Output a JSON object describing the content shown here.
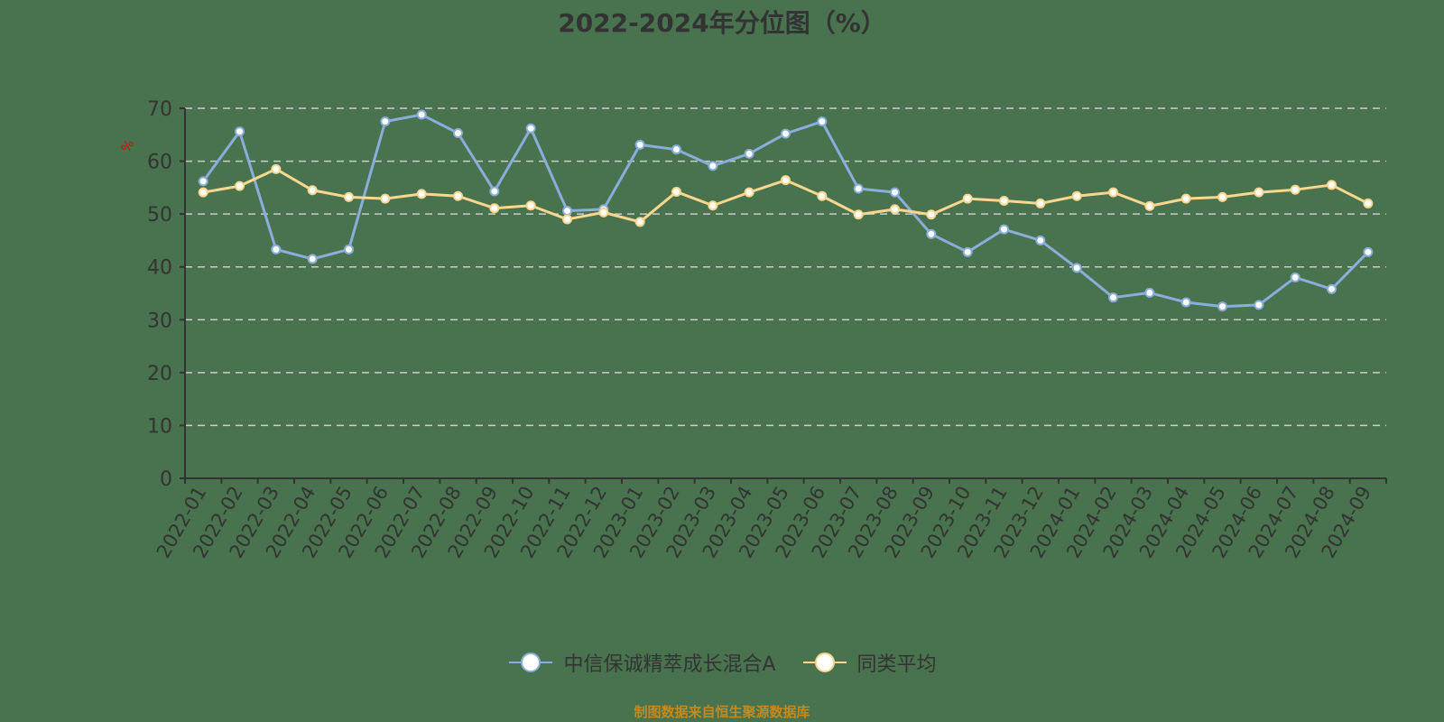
{
  "chart_data": {
    "type": "line",
    "title": "2022-2024年分位图（%）",
    "xlabel": "",
    "ylabel": "%",
    "ylim": [
      0,
      70
    ],
    "yticks": [
      0,
      10,
      20,
      30,
      40,
      50,
      60,
      70
    ],
    "grid": true,
    "legend_position": "bottom",
    "categories": [
      "2022-01",
      "2022-02",
      "2022-03",
      "2022-04",
      "2022-05",
      "2022-06",
      "2022-07",
      "2022-08",
      "2022-09",
      "2022-10",
      "2022-11",
      "2022-12",
      "2023-01",
      "2023-02",
      "2023-03",
      "2023-04",
      "2023-05",
      "2023-06",
      "2023-07",
      "2023-08",
      "2023-09",
      "2023-10",
      "2023-11",
      "2023-12",
      "2024-01",
      "2024-02",
      "2024-03",
      "2024-04",
      "2024-05",
      "2024-06",
      "2024-07",
      "2024-08",
      "2024-09"
    ],
    "series": [
      {
        "name": "中信保诚精萃成长混合A",
        "color": "#8aaedc",
        "values": [
          56.2,
          65.6,
          43.3,
          41.5,
          43.3,
          67.5,
          68.8,
          65.3,
          54.3,
          66.2,
          50.6,
          50.9,
          63.1,
          62.2,
          59.1,
          61.4,
          65.2,
          67.5,
          54.8,
          54.1,
          46.2,
          42.8,
          47.1,
          45.0,
          39.8,
          34.2,
          35.1,
          33.3,
          32.5,
          32.8,
          38.0,
          35.8,
          42.8
        ]
      },
      {
        "name": "同类平均",
        "color": "#fbd68f",
        "values": [
          54.1,
          55.3,
          58.5,
          54.5,
          53.2,
          52.9,
          53.8,
          53.4,
          51.1,
          51.6,
          49.0,
          50.3,
          48.5,
          54.2,
          51.6,
          54.1,
          56.4,
          53.4,
          49.9,
          50.9,
          49.9,
          52.9,
          52.5,
          52.0,
          53.4,
          54.1,
          51.5,
          52.9,
          53.2,
          54.1,
          54.6,
          55.5,
          52.0
        ]
      }
    ]
  },
  "legend": {
    "items": [
      {
        "label": "中信保诚精萃成长混合A"
      },
      {
        "label": "同类平均"
      }
    ]
  },
  "footer": {
    "source": "制图数据来自恒生聚源数据库"
  }
}
